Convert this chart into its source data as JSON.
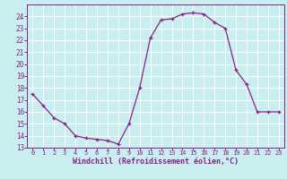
{
  "x": [
    0,
    1,
    2,
    3,
    4,
    5,
    6,
    7,
    8,
    9,
    10,
    11,
    12,
    13,
    14,
    15,
    16,
    17,
    18,
    19,
    20,
    21,
    22,
    23
  ],
  "y": [
    17.5,
    16.5,
    15.5,
    15.0,
    14.0,
    13.8,
    13.7,
    13.6,
    13.3,
    15.0,
    18.0,
    22.2,
    23.7,
    23.8,
    24.2,
    24.3,
    24.2,
    23.5,
    23.0,
    19.5,
    18.3,
    16.0,
    16.0,
    16.0
  ],
  "line_color": "#882288",
  "marker": "+",
  "marker_size": 3,
  "bg_color": "#c8eef0",
  "grid_color": "#ffffff",
  "xlabel": "Windchill (Refroidissement éolien,°C)",
  "xlabel_color": "#882288",
  "tick_color": "#882288",
  "ylim": [
    13,
    25
  ],
  "xlim": [
    -0.5,
    23.5
  ],
  "yticks": [
    13,
    14,
    15,
    16,
    17,
    18,
    19,
    20,
    21,
    22,
    23,
    24
  ],
  "xticks": [
    0,
    1,
    2,
    3,
    4,
    5,
    6,
    7,
    8,
    9,
    10,
    11,
    12,
    13,
    14,
    15,
    16,
    17,
    18,
    19,
    20,
    21,
    22,
    23
  ]
}
